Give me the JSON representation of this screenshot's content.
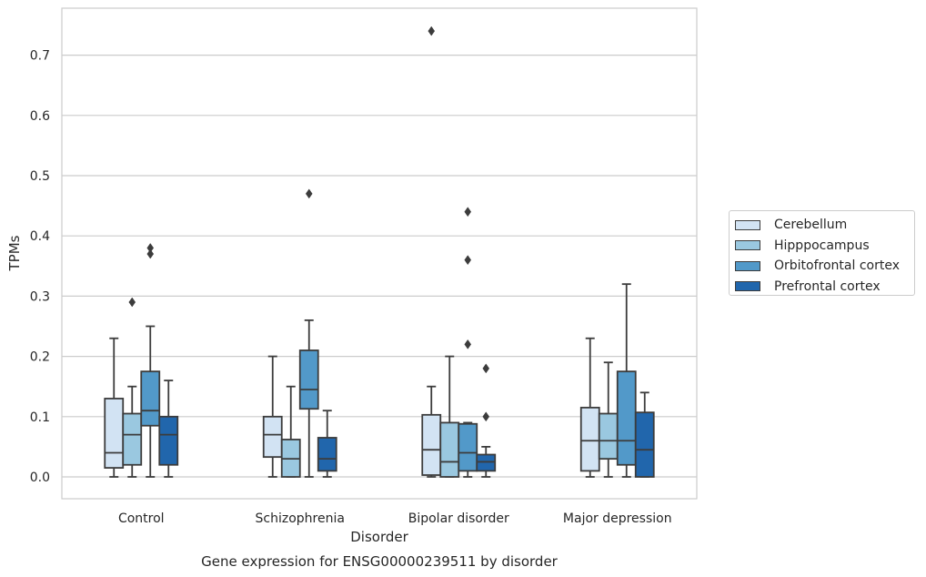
{
  "chart_data": {
    "type": "box",
    "title": "Gene expression for ENSG00000239511 by disorder",
    "xlabel": "Disorder",
    "ylabel": "TPMs",
    "ylim": [
      -0.035,
      0.775
    ],
    "yticks": [
      "0.0",
      "0.1",
      "0.2",
      "0.3",
      "0.4",
      "0.5",
      "0.6",
      "0.7"
    ],
    "grid": "horizontal",
    "legend_position": "right",
    "categories": [
      "Control",
      "Schizophrenia",
      "Bipolar disorder",
      "Major depression"
    ],
    "series": [
      {
        "name": "Cerebellum",
        "color": "#d2e3f3",
        "boxes": [
          {
            "whislo": 0.0,
            "q1": 0.015,
            "med": 0.04,
            "q3": 0.13,
            "whishi": 0.23,
            "fliers": []
          },
          {
            "whislo": 0.0,
            "q1": 0.033,
            "med": 0.07,
            "q3": 0.1,
            "whishi": 0.2,
            "fliers": []
          },
          {
            "whislo": 0.0,
            "q1": 0.003,
            "med": 0.045,
            "q3": 0.103,
            "whishi": 0.15,
            "fliers": [
              0.74
            ]
          },
          {
            "whislo": 0.0,
            "q1": 0.01,
            "med": 0.06,
            "q3": 0.115,
            "whishi": 0.23,
            "fliers": []
          }
        ]
      },
      {
        "name": "Hipppocampus",
        "color": "#9ac8e0",
        "boxes": [
          {
            "whislo": 0.0,
            "q1": 0.02,
            "med": 0.07,
            "q3": 0.105,
            "whishi": 0.15,
            "fliers": [
              0.29
            ]
          },
          {
            "whislo": 0.0,
            "q1": 0.0,
            "med": 0.03,
            "q3": 0.062,
            "whishi": 0.15,
            "fliers": []
          },
          {
            "whislo": 0.0,
            "q1": 0.0,
            "med": 0.025,
            "q3": 0.09,
            "whishi": 0.2,
            "fliers": []
          },
          {
            "whislo": 0.0,
            "q1": 0.03,
            "med": 0.06,
            "q3": 0.105,
            "whishi": 0.19,
            "fliers": []
          }
        ]
      },
      {
        "name": "Orbitofrontal cortex",
        "color": "#5299c9",
        "boxes": [
          {
            "whislo": 0.0,
            "q1": 0.085,
            "med": 0.11,
            "q3": 0.175,
            "whishi": 0.25,
            "fliers": [
              0.38,
              0.37
            ]
          },
          {
            "whislo": 0.0,
            "q1": 0.113,
            "med": 0.145,
            "q3": 0.21,
            "whishi": 0.26,
            "fliers": [
              0.47
            ]
          },
          {
            "whislo": 0.0,
            "q1": 0.01,
            "med": 0.04,
            "q3": 0.088,
            "whishi": 0.09,
            "fliers": [
              0.44,
              0.36,
              0.22
            ]
          },
          {
            "whislo": 0.0,
            "q1": 0.02,
            "med": 0.06,
            "q3": 0.175,
            "whishi": 0.32,
            "fliers": []
          }
        ]
      },
      {
        "name": "Prefrontal cortex",
        "color": "#2166ac",
        "boxes": [
          {
            "whislo": 0.0,
            "q1": 0.02,
            "med": 0.07,
            "q3": 0.1,
            "whishi": 0.16,
            "fliers": []
          },
          {
            "whislo": 0.0,
            "q1": 0.01,
            "med": 0.03,
            "q3": 0.065,
            "whishi": 0.11,
            "fliers": []
          },
          {
            "whislo": 0.0,
            "q1": 0.01,
            "med": 0.025,
            "q3": 0.037,
            "whishi": 0.05,
            "fliers": [
              0.18,
              0.1
            ]
          },
          {
            "whislo": 0.0,
            "q1": 0.0,
            "med": 0.045,
            "q3": 0.107,
            "whishi": 0.14,
            "fliers": []
          }
        ]
      }
    ]
  }
}
